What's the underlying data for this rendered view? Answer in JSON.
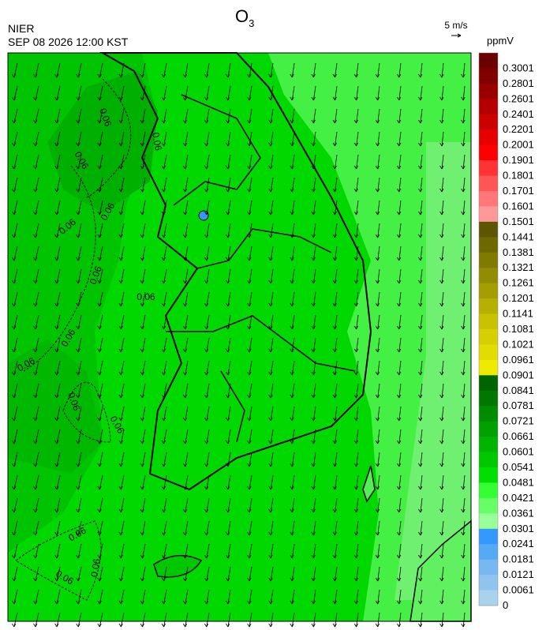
{
  "header": {
    "title": "O",
    "title_subscript": "3",
    "agency": "NIER",
    "datetime": "SEP 08 2026 12:00 KST",
    "vector_scale": "5 m/s",
    "unit": "ppmV"
  },
  "colorbar": {
    "levels": [
      {
        "label": "0.3001",
        "color": "#6a0000"
      },
      {
        "label": "0.2801",
        "color": "#800000"
      },
      {
        "label": "0.2601",
        "color": "#9a0000"
      },
      {
        "label": "0.2401",
        "color": "#b40000"
      },
      {
        "label": "0.2201",
        "color": "#cc0000"
      },
      {
        "label": "0.2001",
        "color": "#e60000"
      },
      {
        "label": "0.1901",
        "color": "#ff0000"
      },
      {
        "label": "0.1801",
        "color": "#ff3333"
      },
      {
        "label": "0.1701",
        "color": "#ff5555"
      },
      {
        "label": "0.1601",
        "color": "#ff7777"
      },
      {
        "label": "0.1501",
        "color": "#ff9999"
      },
      {
        "label": "0.1441",
        "color": "#5c5600"
      },
      {
        "label": "0.1381",
        "color": "#6e6800"
      },
      {
        "label": "0.1321",
        "color": "#807a00"
      },
      {
        "label": "0.1261",
        "color": "#928c00"
      },
      {
        "label": "0.1201",
        "color": "#a49e00"
      },
      {
        "label": "0.1141",
        "color": "#b6b000"
      },
      {
        "label": "0.1081",
        "color": "#c8c200"
      },
      {
        "label": "0.1021",
        "color": "#d6d000"
      },
      {
        "label": "0.0961",
        "color": "#e2dc00"
      },
      {
        "label": "0.0901",
        "color": "#f0ea00"
      },
      {
        "label": "0.0841",
        "color": "#006400"
      },
      {
        "label": "0.0781",
        "color": "#007800"
      },
      {
        "label": "0.0721",
        "color": "#008c00"
      },
      {
        "label": "0.0661",
        "color": "#00a000"
      },
      {
        "label": "0.0601",
        "color": "#00b400"
      },
      {
        "label": "0.0541",
        "color": "#00c800"
      },
      {
        "label": "0.0481",
        "color": "#00e000"
      },
      {
        "label": "0.0421",
        "color": "#33ff33"
      },
      {
        "label": "0.0361",
        "color": "#66ff66"
      },
      {
        "label": "0.0301",
        "color": "#99ff99"
      },
      {
        "label": "0.0241",
        "color": "#3399ff"
      },
      {
        "label": "0.0181",
        "color": "#55aaf5"
      },
      {
        "label": "0.0121",
        "color": "#77b8f0"
      },
      {
        "label": "0.0061",
        "color": "#8fc4ee"
      },
      {
        "label": "0",
        "color": "#a8d2ee"
      }
    ]
  },
  "contour_labels": [
    "0.06",
    "0.06",
    "0.06",
    "0.06",
    "0.06",
    "0.06",
    "0.06",
    "0.06",
    "0.06",
    "0.06",
    "0.06",
    "0.06",
    "0.06",
    "0.06"
  ]
}
